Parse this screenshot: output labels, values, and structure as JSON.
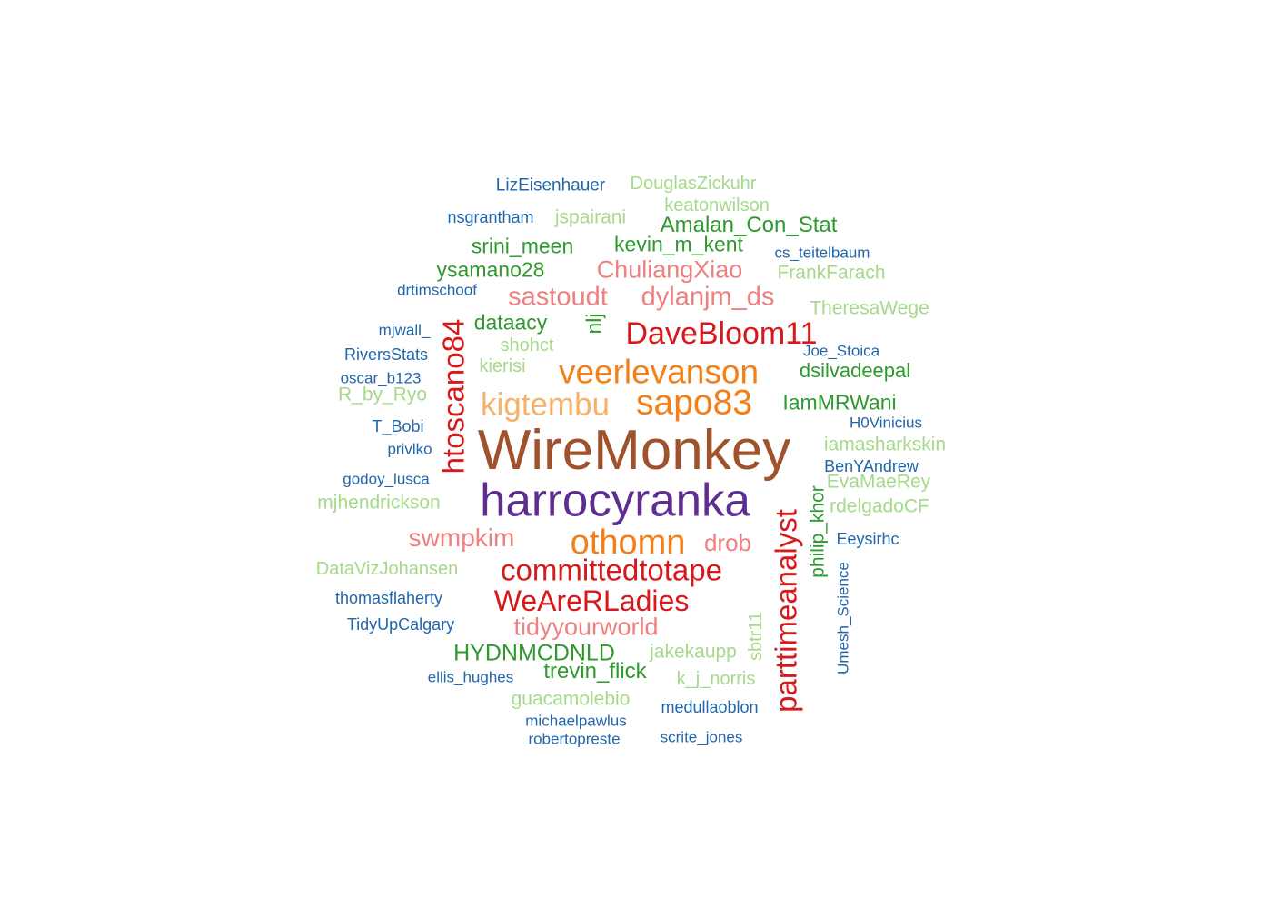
{
  "palette": {
    "brown": "#a0522d",
    "purple": "#5e2e8f",
    "orange": "#f57f17",
    "light_orange": "#f6b26b",
    "red": "#d7191c",
    "pink": "#f08080",
    "dark_green": "#2e9a2e",
    "light_green": "#a6d98a",
    "blue": "#2166ac"
  },
  "words": [
    {
      "text": "WireMonkey",
      "color": "brown"
    },
    {
      "text": "harrocyranka",
      "color": "purple"
    },
    {
      "text": "sapo83",
      "color": "orange"
    },
    {
      "text": "veerlevanson",
      "color": "orange"
    },
    {
      "text": "othomn",
      "color": "orange"
    },
    {
      "text": "kigtembu",
      "color": "light_orange"
    },
    {
      "text": "DaveBloom11",
      "color": "red"
    },
    {
      "text": "htoscano84",
      "color": "red"
    },
    {
      "text": "committedtotape",
      "color": "red"
    },
    {
      "text": "WeAreRLadies",
      "color": "red"
    },
    {
      "text": "parttimeanalyst",
      "color": "red"
    },
    {
      "text": "sastoudt",
      "color": "pink"
    },
    {
      "text": "dylanjm_ds",
      "color": "pink"
    },
    {
      "text": "ChuliangXiao",
      "color": "pink"
    },
    {
      "text": "swmpkim",
      "color": "pink"
    },
    {
      "text": "drob",
      "color": "pink"
    },
    {
      "text": "tidyyourworld",
      "color": "pink"
    },
    {
      "text": "Amalan_Con_Stat",
      "color": "dark_green"
    },
    {
      "text": "srini_meen",
      "color": "dark_green"
    },
    {
      "text": "kevin_m_kent",
      "color": "dark_green"
    },
    {
      "text": "ysamano28",
      "color": "dark_green"
    },
    {
      "text": "dataacy",
      "color": "dark_green"
    },
    {
      "text": "nlj",
      "color": "dark_green"
    },
    {
      "text": "dsilvadeepal",
      "color": "dark_green"
    },
    {
      "text": "IamMRWani",
      "color": "dark_green"
    },
    {
      "text": "HYDNMCDNLD",
      "color": "dark_green"
    },
    {
      "text": "trevin_flick",
      "color": "dark_green"
    },
    {
      "text": "philip_khor",
      "color": "dark_green"
    },
    {
      "text": "DouglasZickuhr",
      "color": "light_green"
    },
    {
      "text": "keatonwilson",
      "color": "light_green"
    },
    {
      "text": "jspairani",
      "color": "light_green"
    },
    {
      "text": "FrankFarach",
      "color": "light_green"
    },
    {
      "text": "TheresaWege",
      "color": "light_green"
    },
    {
      "text": "shohct",
      "color": "light_green"
    },
    {
      "text": "kierisi",
      "color": "light_green"
    },
    {
      "text": "R_by_Ryo",
      "color": "light_green"
    },
    {
      "text": "iamasharkskin",
      "color": "light_green"
    },
    {
      "text": "EvaMaeRey",
      "color": "light_green"
    },
    {
      "text": "rdelgadoCF",
      "color": "light_green"
    },
    {
      "text": "mjhendrickson",
      "color": "light_green"
    },
    {
      "text": "DataVizJohansen",
      "color": "light_green"
    },
    {
      "text": "jakekaupp",
      "color": "light_green"
    },
    {
      "text": "sbtr11",
      "color": "light_green"
    },
    {
      "text": "k_j_norris",
      "color": "light_green"
    },
    {
      "text": "guacamolebio",
      "color": "light_green"
    },
    {
      "text": "LizEisenhauer",
      "color": "blue"
    },
    {
      "text": "nsgrantham",
      "color": "blue"
    },
    {
      "text": "cs_teitelbaum",
      "color": "blue"
    },
    {
      "text": "drtimschoof",
      "color": "blue"
    },
    {
      "text": "mjwall_",
      "color": "blue"
    },
    {
      "text": "RiversStats",
      "color": "blue"
    },
    {
      "text": "oscar_b123",
      "color": "blue"
    },
    {
      "text": "Joe_Stoica",
      "color": "blue"
    },
    {
      "text": "T_Bobi",
      "color": "blue"
    },
    {
      "text": "H0Vinicius",
      "color": "blue"
    },
    {
      "text": "privlko",
      "color": "blue"
    },
    {
      "text": "BenYAndrew",
      "color": "blue"
    },
    {
      "text": "godoy_lusca",
      "color": "blue"
    },
    {
      "text": "Eeysirhc",
      "color": "blue"
    },
    {
      "text": "thomasflaherty",
      "color": "blue"
    },
    {
      "text": "TidyUpCalgary",
      "color": "blue"
    },
    {
      "text": "Umesh_Science",
      "color": "blue"
    },
    {
      "text": "ellis_hughes",
      "color": "blue"
    },
    {
      "text": "medullaoblon",
      "color": "blue"
    },
    {
      "text": "michaelpawlus",
      "color": "blue"
    },
    {
      "text": "robertopreste",
      "color": "blue"
    },
    {
      "text": "scrite_jones",
      "color": "blue"
    }
  ]
}
